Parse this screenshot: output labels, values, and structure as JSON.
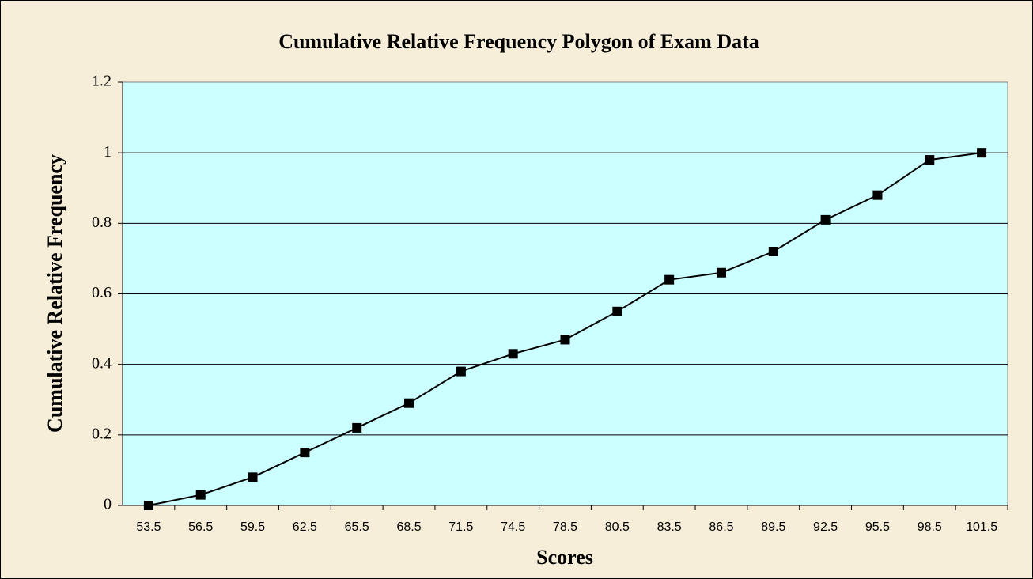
{
  "chart_data": {
    "type": "line",
    "title": "Cumulative Relative Frequency Polygon of Exam Data",
    "xlabel": "Scores",
    "ylabel": "Cumulative Relative Frequency",
    "categories": [
      "53.5",
      "56.5",
      "59.5",
      "62.5",
      "65.5",
      "68.5",
      "71.5",
      "74.5",
      "78.5",
      "80.5",
      "83.5",
      "86.5",
      "89.5",
      "92.5",
      "95.5",
      "98.5",
      "101.5"
    ],
    "values": [
      0,
      0.03,
      0.08,
      0.15,
      0.22,
      0.29,
      0.38,
      0.43,
      0.47,
      0.55,
      0.64,
      0.66,
      0.72,
      0.81,
      0.88,
      0.98,
      1.0
    ],
    "color": "#000000",
    "plot_background": "#ccffff",
    "background": "#f6eed9",
    "ylim": [
      0,
      1.2
    ],
    "yticks": [
      0,
      0.2,
      0.4,
      0.6,
      0.8,
      1,
      1.2
    ],
    "grid": true
  }
}
